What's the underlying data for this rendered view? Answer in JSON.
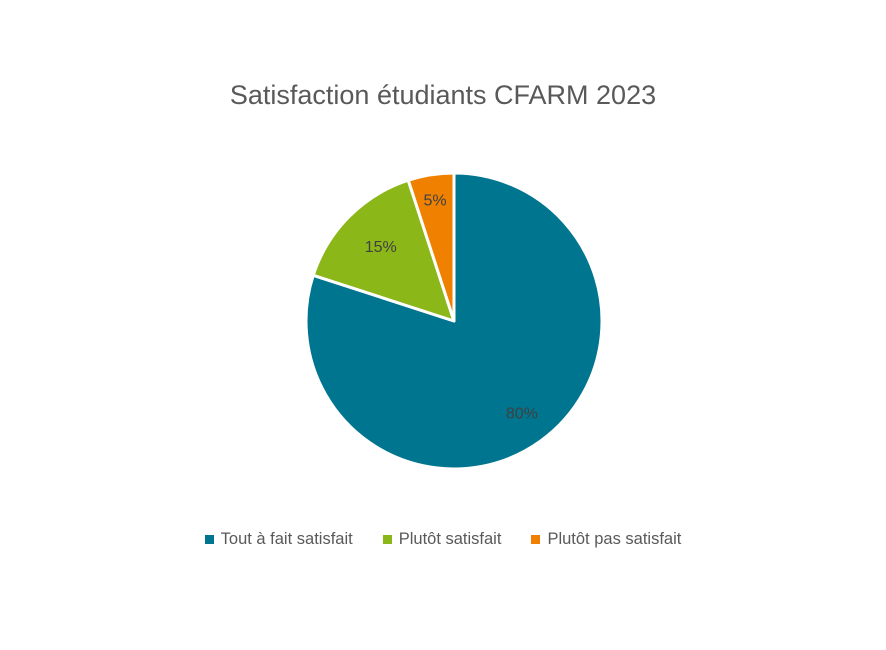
{
  "chart_data": {
    "type": "pie",
    "title": "Satisfaction étudiants CFARM 2023",
    "categories": [
      "Tout à fait satisfait",
      "Plutôt satisfait",
      "Plutôt pas satisfait"
    ],
    "values": [
      80,
      15,
      5
    ],
    "data_labels": [
      "80%",
      "15%",
      "5%"
    ],
    "colors": [
      "#00758F",
      "#8CB719",
      "#F08000"
    ],
    "legend_position": "bottom"
  }
}
